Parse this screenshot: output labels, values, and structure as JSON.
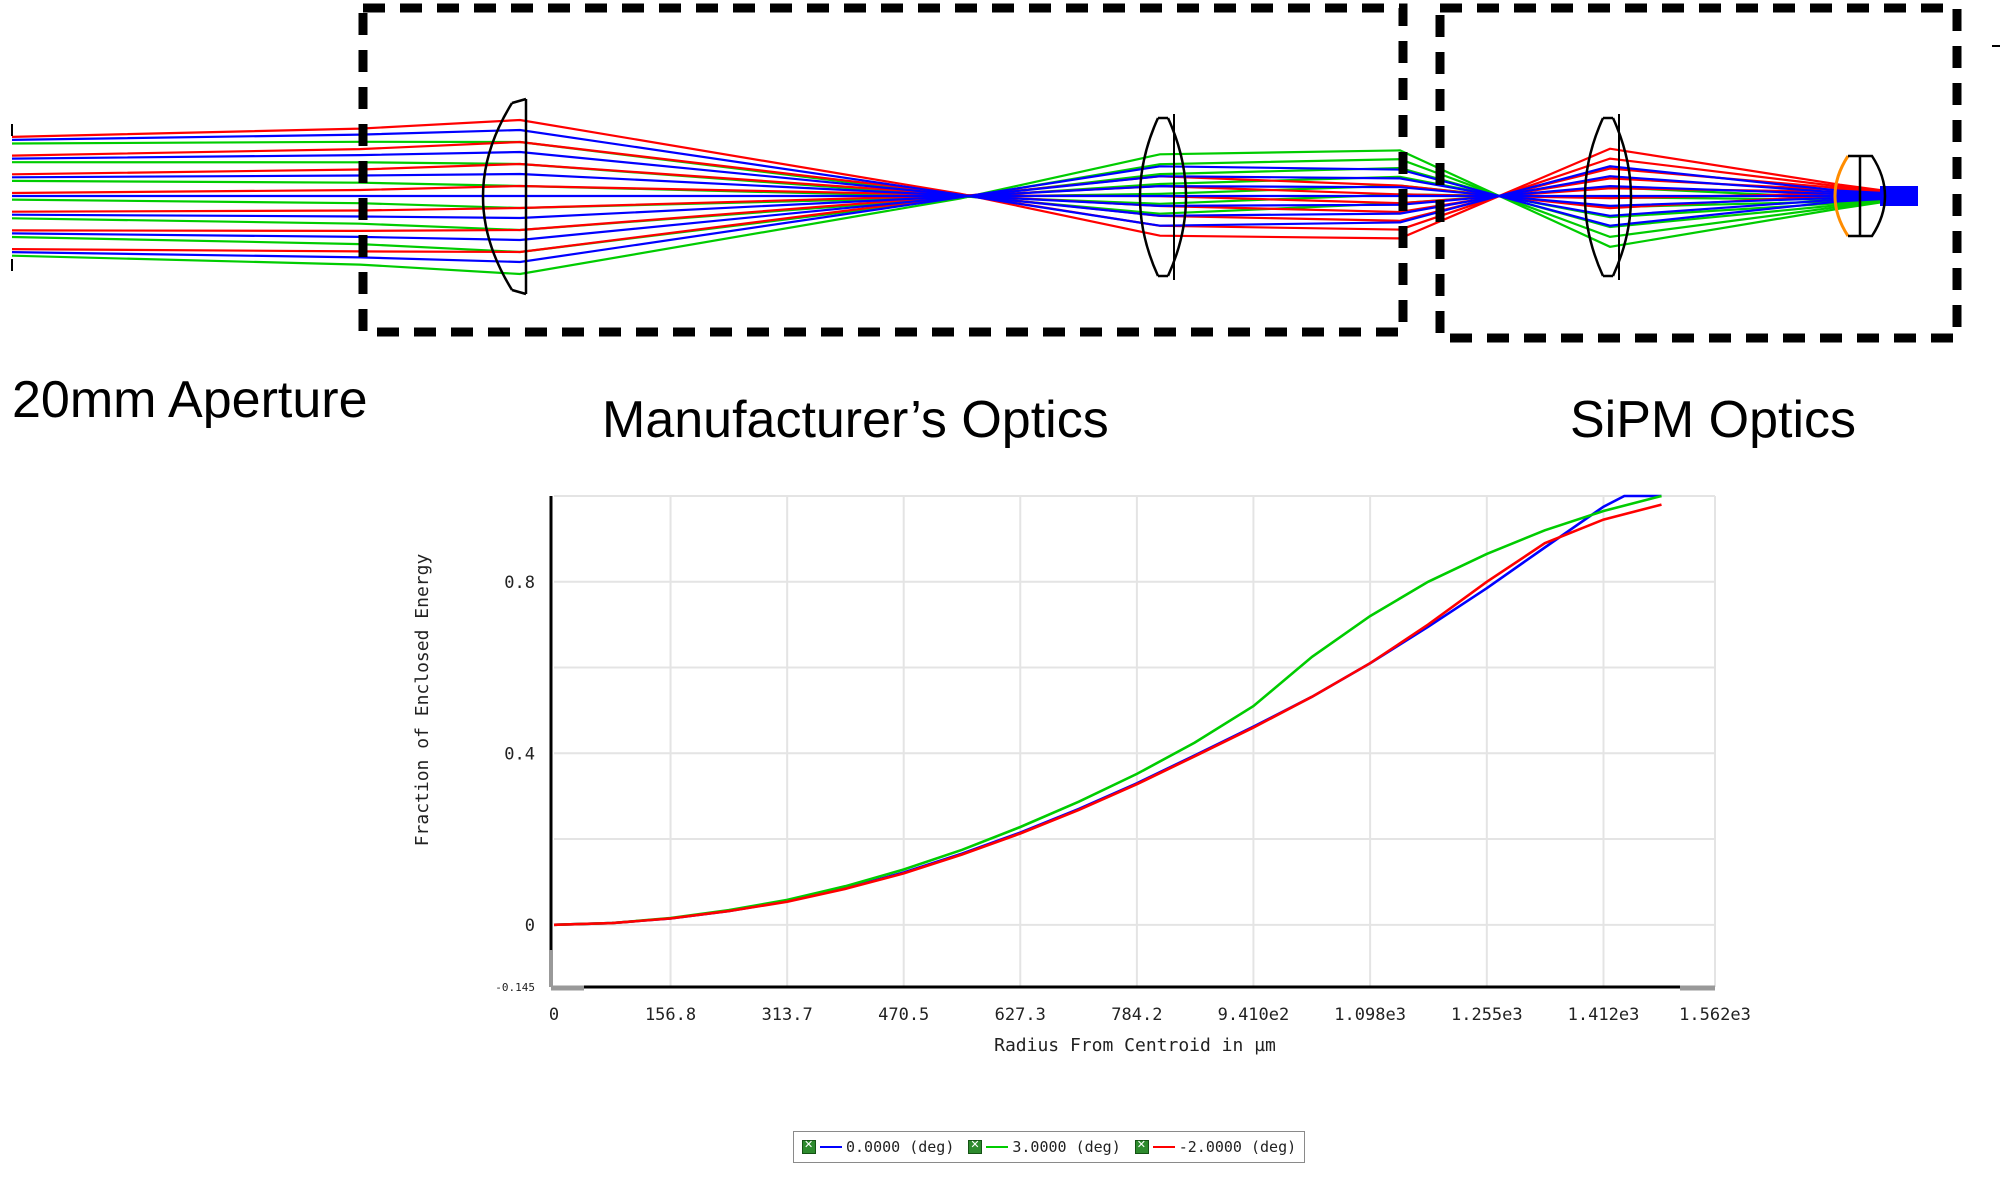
{
  "captions": {
    "aperture": "20mm Aperture",
    "manufacturer": "Manufacturer’s Optics",
    "sipm": "SiPM Optics"
  },
  "colors": {
    "series_0": "#0000ff",
    "series_1": "#00cc00",
    "series_2": "#ff0000",
    "lens": "#000000",
    "detector_edge": "#ff8c00",
    "box": "#000000"
  },
  "icons": [
    "checkbox-checked-icon"
  ],
  "chart_data": {
    "type": "line",
    "xlabel": "Radius From Centroid in µm",
    "ylabel": "Fraction of Enclosed Energy",
    "xlim": [
      0,
      1562
    ],
    "ylim": [
      -0.145,
      1.0
    ],
    "x_ticks": [
      "0",
      "156.8",
      "313.7",
      "470.5",
      "627.3",
      "784.2",
      "9.410e2",
      "1.098e3",
      "1.255e3",
      "1.412e3",
      "1.562e3"
    ],
    "x_tick_values": [
      0,
      156.8,
      313.7,
      470.5,
      627.3,
      784.2,
      941.0,
      1098,
      1255,
      1412,
      1562
    ],
    "y_ticks": [
      "-0.145",
      "0",
      "0.4",
      "0.8"
    ],
    "y_tick_values": [
      -0.145,
      0,
      0.4,
      0.8
    ],
    "y_grid_values": [
      0,
      0.2,
      0.4,
      0.6,
      0.8,
      1.0
    ],
    "grid": true,
    "legend_position": "bottom",
    "series": [
      {
        "name": "0.0000 (deg)",
        "color": "#0000ff",
        "x": [
          0,
          78,
          156.8,
          235,
          313.7,
          392,
          470.5,
          549,
          627.3,
          706,
          784.2,
          862,
          941,
          1020,
          1098,
          1176,
          1255,
          1333,
          1412,
          1440,
          1490
        ],
        "y": [
          0,
          0.004,
          0.015,
          0.032,
          0.055,
          0.085,
          0.122,
          0.166,
          0.215,
          0.27,
          0.33,
          0.395,
          0.462,
          0.532,
          0.61,
          0.695,
          0.785,
          0.88,
          0.975,
          1.0,
          1.0
        ]
      },
      {
        "name": "3.0000 (deg)",
        "color": "#00cc00",
        "x": [
          0,
          78,
          156.8,
          235,
          313.7,
          392,
          470.5,
          549,
          627.3,
          706,
          784.2,
          862,
          941,
          1020,
          1098,
          1176,
          1255,
          1333,
          1412,
          1490
        ],
        "y": [
          0,
          0.004,
          0.016,
          0.034,
          0.058,
          0.09,
          0.129,
          0.175,
          0.228,
          0.287,
          0.352,
          0.425,
          0.51,
          0.625,
          0.72,
          0.8,
          0.865,
          0.92,
          0.965,
          1.0
        ]
      },
      {
        "name": "-2.0000 (deg)",
        "color": "#ff0000",
        "x": [
          0,
          78,
          156.8,
          235,
          313.7,
          392,
          470.5,
          549,
          627.3,
          706,
          784.2,
          862,
          941,
          1020,
          1098,
          1176,
          1255,
          1333,
          1412,
          1490
        ],
        "y": [
          0,
          0.004,
          0.015,
          0.032,
          0.054,
          0.084,
          0.12,
          0.164,
          0.213,
          0.268,
          0.328,
          0.393,
          0.46,
          0.532,
          0.61,
          0.7,
          0.8,
          0.89,
          0.945,
          0.98
        ]
      }
    ]
  }
}
